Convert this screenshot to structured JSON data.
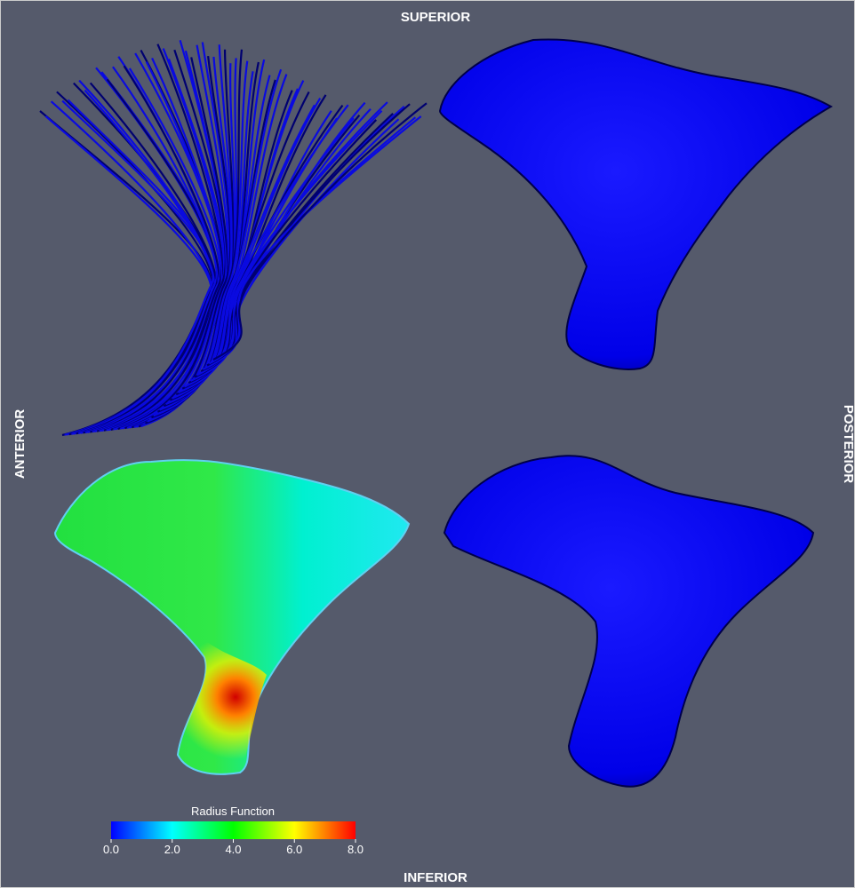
{
  "labels": {
    "superior": "SUPERIOR",
    "inferior": "INFERIOR",
    "anterior": "ANTERIOR",
    "posterior": "POSTERIOR"
  },
  "colorbar": {
    "title": "Radius Function",
    "range": [
      0,
      8
    ],
    "ticks": [
      {
        "value": 0,
        "label": "0.0"
      },
      {
        "value": 2,
        "label": "2.0"
      },
      {
        "value": 4,
        "label": "4.0"
      },
      {
        "value": 6,
        "label": "6.0"
      },
      {
        "value": 8,
        "label": "8.0"
      }
    ]
  }
}
